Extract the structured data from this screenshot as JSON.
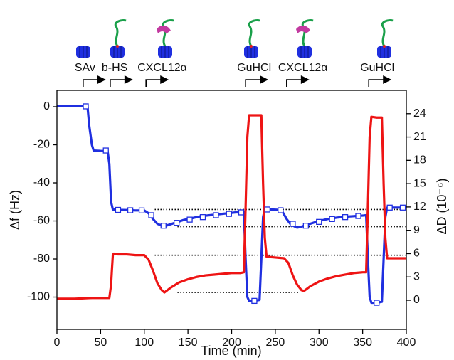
{
  "chart_data": {
    "type": "line",
    "x_label": "Time (min)",
    "y_label": "Δf (Hz)",
    "y2_label": "ΔD (10⁻⁶)",
    "xlim": [
      0,
      400
    ],
    "xticks": [
      0,
      50,
      100,
      150,
      200,
      250,
      300,
      350,
      400
    ],
    "ylim": [
      -117,
      8.6
    ],
    "yticks": [
      -100,
      -80,
      -60,
      -40,
      -20,
      0
    ],
    "y2lim": [
      -3.75,
      27
    ],
    "y2ticks": [
      0,
      3,
      6,
      9,
      12,
      15,
      18,
      21,
      24
    ],
    "y_color": "#1f2fe0",
    "y2_color": "#ee1414",
    "series": [
      {
        "color": "#1f2fe0",
        "axis": "y",
        "marker": "none",
        "x": [
          0,
          10,
          20,
          30,
          35,
          37,
          40,
          42,
          50,
          58,
          60,
          62,
          64,
          70,
          80,
          90,
          100,
          105,
          110,
          115,
          120,
          125,
          135,
          145,
          155,
          165,
          175,
          185,
          195,
          205,
          214,
          216,
          218,
          220,
          226,
          232,
          234,
          236,
          238,
          245,
          255,
          258,
          263,
          268,
          275,
          280,
          290,
          300,
          310,
          320,
          330,
          340,
          350,
          354,
          356,
          358,
          360,
          366,
          372,
          374,
          376,
          378,
          385,
          392,
          400
        ],
        "values": [
          0.5,
          0.5,
          0.3,
          0.3,
          0,
          -10,
          -20,
          -23,
          -23.2,
          -23.3,
          -30,
          -50,
          -54,
          -54.2,
          -54.3,
          -54.5,
          -54.5,
          -56,
          -59,
          -61.5,
          -62.5,
          -62.5,
          -61,
          -59.5,
          -58.5,
          -57.5,
          -57,
          -56.5,
          -56,
          -55.5,
          -55.5,
          -80,
          -100,
          -102,
          -102,
          -101.5,
          -80,
          -58,
          -53.5,
          -54,
          -54.2,
          -55,
          -59,
          -62,
          -63.5,
          -63,
          -61.5,
          -60,
          -59,
          -58.3,
          -57.8,
          -57.5,
          -57.2,
          -57,
          -80,
          -100,
          -103,
          -103,
          -102.5,
          -80,
          -58,
          -53,
          -53,
          -53,
          -53
        ]
      },
      {
        "color": "#1f2fe0",
        "axis": "y",
        "marker": "square",
        "x": [
          33,
          56,
          70,
          84,
          97,
          108,
          122,
          137,
          152,
          167,
          182,
          197,
          211,
          226,
          241,
          256,
          270,
          285,
          300,
          315,
          330,
          345,
          366,
          381,
          396
        ],
        "values": [
          0.2,
          -23,
          -54.2,
          -54.4,
          -54.5,
          -57,
          -62.5,
          -61,
          -59.3,
          -58,
          -57,
          -56.3,
          -55.5,
          -102,
          -54,
          -54.4,
          -61.5,
          -62.5,
          -60.5,
          -59,
          -58,
          -57.4,
          -103,
          -53,
          -53
        ]
      },
      {
        "color": "#ee1414",
        "axis": "y2",
        "marker": "none",
        "x": [
          0,
          20,
          40,
          60,
          62,
          63,
          64,
          65,
          70,
          80,
          90,
          100,
          105,
          110,
          115,
          120,
          123,
          130,
          140,
          150,
          160,
          170,
          180,
          190,
          200,
          210,
          214,
          216,
          218,
          220,
          226,
          234,
          236,
          238,
          240,
          250,
          260,
          265,
          270,
          275,
          280,
          283,
          290,
          300,
          310,
          320,
          330,
          340,
          350,
          354,
          356,
          358,
          360,
          366,
          372,
          374,
          376,
          378,
          390,
          400
        ],
        "values": [
          0.2,
          0.2,
          0.3,
          0.3,
          2,
          4,
          5.8,
          6,
          5.9,
          5.9,
          5.8,
          5.8,
          5.2,
          3.8,
          2.2,
          1.3,
          1.0,
          1.6,
          2.3,
          2.7,
          3.0,
          3.2,
          3.3,
          3.4,
          3.5,
          3.5,
          3.6,
          12,
          21,
          23.8,
          23.8,
          23.8,
          15,
          8,
          5.6,
          5.5,
          5.4,
          4.8,
          3.2,
          2.0,
          1.3,
          1.2,
          1.8,
          2.4,
          2.8,
          3.1,
          3.3,
          3.5,
          3.6,
          3.6,
          12,
          21,
          23.6,
          23.5,
          23.5,
          15,
          8,
          5.4,
          5.4,
          5.4
        ]
      }
    ],
    "ref_lines": [
      {
        "axis": "y",
        "y": -54,
        "x": [
          112,
          400
        ]
      },
      {
        "axis": "y",
        "y": -63,
        "x": [
          138,
          400
        ]
      },
      {
        "axis": "y2",
        "y": 5.8,
        "x": [
          112,
          400
        ]
      },
      {
        "axis": "y2",
        "y": 1.0,
        "x": [
          138,
          277
        ]
      }
    ],
    "annotations": [
      {
        "text": "SAv",
        "x": 30
      },
      {
        "text": "b-HS",
        "x": 61
      },
      {
        "text": "CXCL12α",
        "x": 102
      },
      {
        "text": "GuHCl",
        "x": 216
      },
      {
        "text": "CXCL12α",
        "x": 263
      },
      {
        "text": "GuHCl",
        "x": 357
      }
    ]
  }
}
